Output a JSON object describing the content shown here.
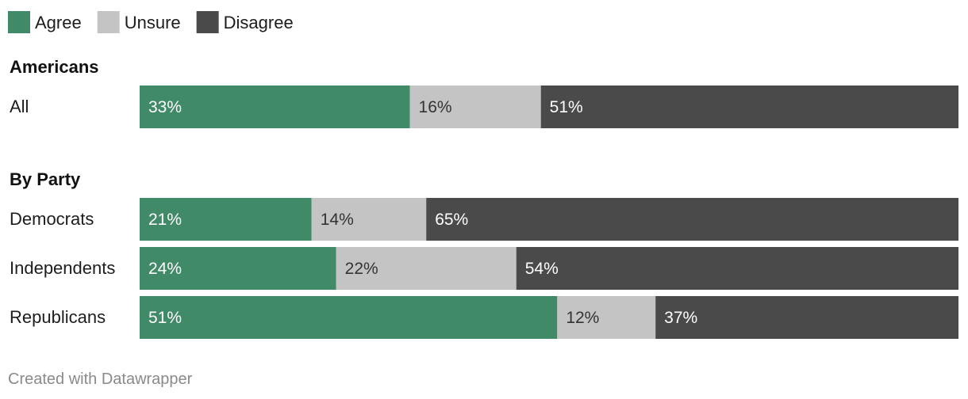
{
  "chart_data": {
    "type": "bar",
    "stacked": true,
    "orientation": "horizontal",
    "xlim": [
      0,
      100
    ],
    "legend": {
      "position": "top-left",
      "entries": [
        {
          "name": "Agree",
          "color": "#408a68"
        },
        {
          "name": "Unsure",
          "color": "#c4c4c4"
        },
        {
          "name": "Disagree",
          "color": "#4a4a4a"
        }
      ]
    },
    "groups": [
      {
        "title": "Americans",
        "rows": [
          {
            "label": "All",
            "values": [
              33,
              16,
              51
            ],
            "labels": [
              "33%",
              "16%",
              "51%"
            ]
          }
        ]
      },
      {
        "title": "By Party",
        "rows": [
          {
            "label": "Democrats",
            "values": [
              21,
              14,
              65
            ],
            "labels": [
              "21%",
              "14%",
              "65%"
            ]
          },
          {
            "label": "Independents",
            "values": [
              24,
              22,
              54
            ],
            "labels": [
              "24%",
              "22%",
              "54%"
            ]
          },
          {
            "label": "Republicans",
            "values": [
              51,
              12,
              37
            ],
            "labels": [
              "51%",
              "12%",
              "37%"
            ]
          }
        ]
      }
    ]
  },
  "credit": "Created with Datawrapper",
  "label_colors": {
    "Agree": "#ffffff",
    "Unsure": "#333333",
    "Disagree": "#ffffff"
  }
}
